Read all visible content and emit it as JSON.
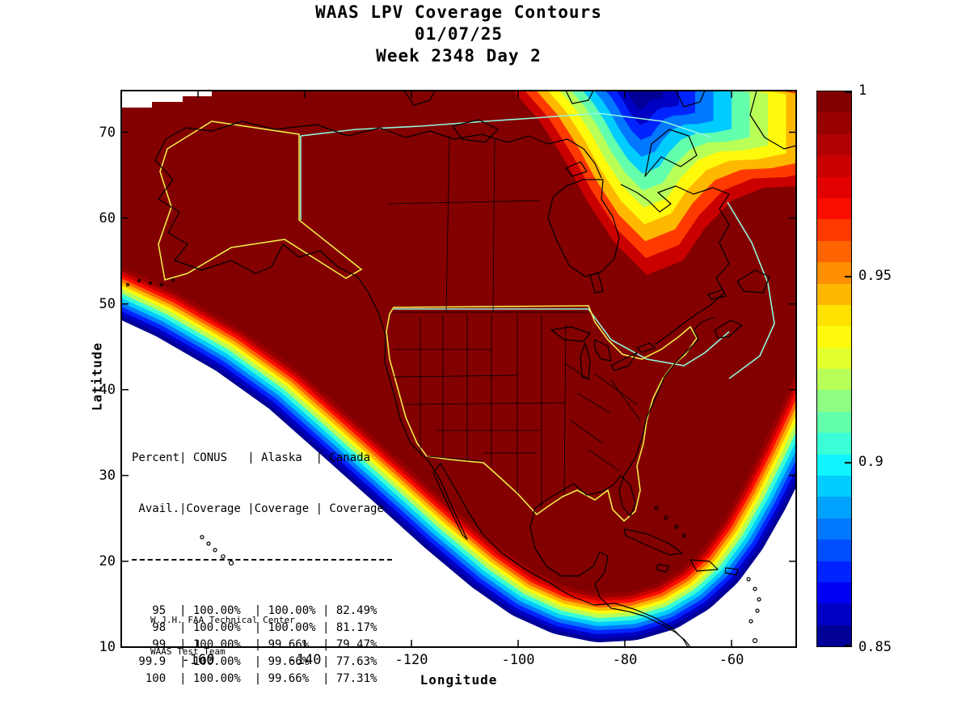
{
  "title": {
    "line1": "WAAS LPV Coverage Contours",
    "line2": "01/07/25",
    "line3": "Week 2348 Day 2"
  },
  "axes": {
    "xlabel": "Longitude",
    "ylabel": "Latitude"
  },
  "colorbar": {
    "tick_labels": [
      "1",
      "0.95",
      "0.9",
      "0.85"
    ],
    "scale_colors": [
      "#830000",
      "#980000",
      "#b10000",
      "#ca0000",
      "#e30000",
      "#fb0d00",
      "#ff3a00",
      "#ff6400",
      "#ff8e00",
      "#ffb800",
      "#ffe200",
      "#fff90c",
      "#e2ff2e",
      "#b8ff58",
      "#8eff82",
      "#64ffac",
      "#3affd6",
      "#10f4ff",
      "#00ccff",
      "#00a2ff",
      "#0078ff",
      "#004eff",
      "#0024ff",
      "#0000f4",
      "#0000c4",
      "#000096"
    ]
  },
  "colors": {
    "coverage_max": "#830000",
    "service_volume_conus_alaska": "#f0ec46",
    "service_volume_canada": "#90f8e0",
    "coastline": "#000000",
    "background": "#ffffff"
  },
  "table_display": {
    "header_line1": "Percent| CONUS   | Alaska  | Canada",
    "header_line2": " Avail.|Coverage |Coverage | Coverage"
  },
  "attribution": {
    "line1": "W.J.H. FAA Technical Center",
    "line2": "WAAS Test Team"
  },
  "chart_data": {
    "type": "heatmap",
    "title": "WAAS LPV Coverage Contours",
    "subtitle_date": "01/07/25",
    "subtitle_week": "Week 2348 Day 2",
    "xlabel": "Longitude",
    "ylabel": "Latitude",
    "xlim": [
      -175,
      -48
    ],
    "ylim": [
      10,
      75
    ],
    "x_ticks": [
      -160,
      -140,
      -120,
      -100,
      -80,
      -60
    ],
    "y_ticks": [
      10,
      20,
      30,
      40,
      50,
      60,
      70
    ],
    "colorbar_ticks": [
      1,
      0.95,
      0.9,
      0.85
    ],
    "colorbar_range": [
      0.85,
      1
    ],
    "grid": false,
    "legend": "colorbar-right",
    "description": "Filled contour map of WAAS LPV coverage availability over North America. Deep red (availability 1.0) covers most of the continent, with rainbow fringe bands stepping down to 0.85 (dark blue) along the Pacific southwest edge, Mexico/Caribbean southern edge, and Atlantic southeast edge, plus a low-coverage trough (yellow to dark blue) over northeastern Canada near Hudson Bay and Baffin Island. Yellow outlines mark the CONUS and Alaska service volumes; a cyan outline marks the Canada service volume; black lines are coastlines and state/province boundaries.",
    "availability_table": {
      "columns": [
        "Percent Avail.",
        "CONUS Coverage",
        "Alaska Coverage",
        "Canada Coverage"
      ],
      "rows": [
        [
          "95",
          "100.00%",
          "100.00%",
          "82.49%"
        ],
        [
          "98",
          "100.00%",
          "100.00%",
          "81.17%"
        ],
        [
          "99",
          "100.00%",
          "99.66%",
          "79.47%"
        ],
        [
          "99.9",
          "100.00%",
          "99.66%",
          "77.63%"
        ],
        [
          "100",
          "100.00%",
          "99.66%",
          "77.31%"
        ]
      ]
    }
  }
}
